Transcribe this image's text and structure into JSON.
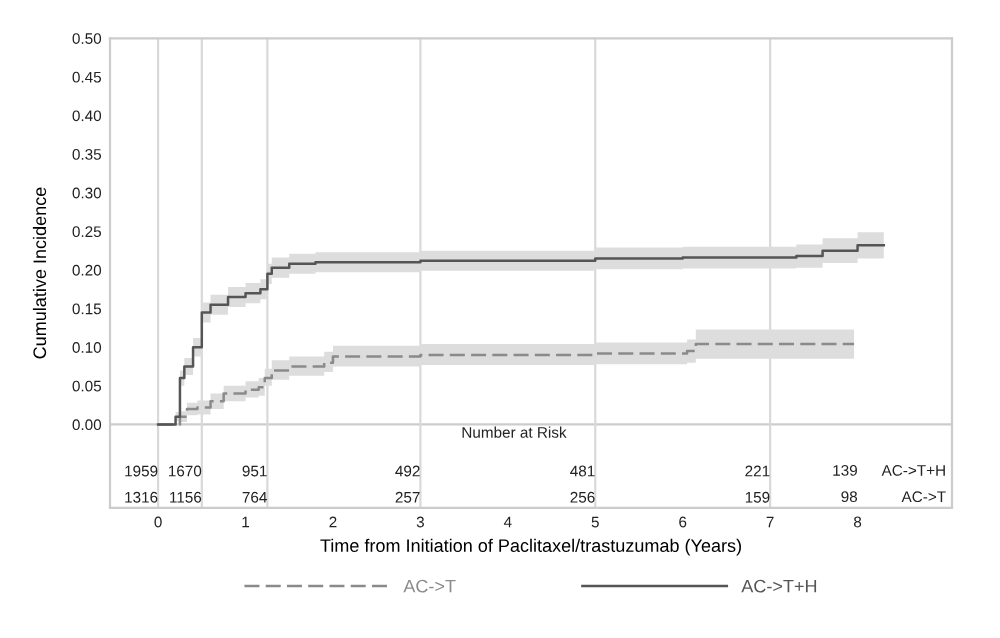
{
  "chart_data": {
    "type": "step",
    "xlabel": "Time from Initiation of Paclitaxel/trastuzumab (Years)",
    "ylabel": "Cumulative Incidence",
    "xlim": [
      -0.55,
      9.08
    ],
    "xticks": [
      0,
      1,
      2,
      3,
      4,
      5,
      6,
      7,
      8
    ],
    "ylim": [
      -0.108,
      0.5
    ],
    "yticks": [
      {
        "value": 0,
        "label": "0.00"
      },
      {
        "value": 0.05,
        "label": "0.05"
      },
      {
        "value": 0.1,
        "label": "0.10"
      },
      {
        "value": 0.15,
        "label": "0.15"
      },
      {
        "value": 0.2,
        "label": "0.20"
      },
      {
        "value": 0.25,
        "label": "0.25"
      },
      {
        "value": 0.3,
        "label": "0.30"
      },
      {
        "value": 0.35,
        "label": "0.35"
      },
      {
        "value": 0.4,
        "label": "0.40"
      },
      {
        "value": 0.45,
        "label": "0.45"
      },
      {
        "value": 0.5,
        "label": "0.50"
      }
    ],
    "grid": false,
    "legend": "bottom",
    "series": [
      {
        "name": "AC->T",
        "color": "#8a8a8a",
        "line_style": "dashed",
        "x": [
          0,
          0.15,
          0.25,
          0.33,
          0.45,
          0.6,
          0.75,
          1.0,
          1.15,
          1.22,
          1.3,
          1.5,
          1.9,
          2.0,
          3.0,
          5.0,
          6.05,
          6.15,
          7.96
        ],
        "values": [
          0,
          0,
          0.01,
          0.02,
          0.022,
          0.03,
          0.04,
          0.045,
          0.048,
          0.06,
          0.07,
          0.075,
          0.08,
          0.088,
          0.09,
          0.092,
          0.095,
          0.104,
          0.104
        ],
        "lower": [
          0,
          0,
          0.003,
          0.012,
          0.013,
          0.02,
          0.03,
          0.035,
          0.037,
          0.05,
          0.058,
          0.063,
          0.068,
          0.075,
          0.077,
          0.078,
          0.08,
          0.085,
          0.083
        ],
        "upper": [
          0,
          0,
          0.017,
          0.028,
          0.031,
          0.04,
          0.05,
          0.056,
          0.06,
          0.072,
          0.083,
          0.088,
          0.094,
          0.102,
          0.104,
          0.106,
          0.11,
          0.123,
          0.127
        ]
      },
      {
        "name": "AC->T+H",
        "color": "#555555",
        "line_style": "solid",
        "x": [
          0,
          0.1,
          0.2,
          0.25,
          0.3,
          0.4,
          0.5,
          0.6,
          0.8,
          1.0,
          1.17,
          1.25,
          1.3,
          1.5,
          1.8,
          3.0,
          5.0,
          6.0,
          7.3,
          7.6,
          8.0,
          8.3
        ],
        "values": [
          0,
          0,
          0.01,
          0.06,
          0.075,
          0.1,
          0.145,
          0.155,
          0.165,
          0.17,
          0.175,
          0.195,
          0.203,
          0.208,
          0.21,
          0.212,
          0.215,
          0.216,
          0.218,
          0.225,
          0.232,
          0.232
        ],
        "lower": [
          0,
          0,
          0.004,
          0.05,
          0.064,
          0.088,
          0.132,
          0.142,
          0.152,
          0.157,
          0.162,
          0.182,
          0.19,
          0.195,
          0.197,
          0.199,
          0.201,
          0.202,
          0.203,
          0.209,
          0.215,
          0.214
        ],
        "upper": [
          0,
          0,
          0.016,
          0.07,
          0.086,
          0.112,
          0.158,
          0.168,
          0.178,
          0.183,
          0.188,
          0.208,
          0.216,
          0.221,
          0.223,
          0.225,
          0.229,
          0.23,
          0.233,
          0.241,
          0.249,
          0.25
        ]
      }
    ],
    "ref_lines": [
      {
        "axis": "y",
        "value": 0,
        "color": "#cccccc"
      },
      {
        "axis": "x",
        "value": 0,
        "color": "#d9d9d9"
      },
      {
        "axis": "x",
        "value": 0.5,
        "color": "#d9d9d9"
      },
      {
        "axis": "x",
        "value": 1.25,
        "color": "#d9d9d9"
      },
      {
        "axis": "x",
        "value": 3,
        "color": "#d9d9d9"
      },
      {
        "axis": "x",
        "value": 5,
        "color": "#d9d9d9"
      },
      {
        "axis": "x",
        "value": 7,
        "color": "#d9d9d9"
      }
    ],
    "annotations": [
      {
        "text": "Number at Risk",
        "x": 4.07,
        "y": -0.012
      },
      {
        "text": "1959",
        "x": 0,
        "y": -0.062
      },
      {
        "text": "1670",
        "x": 0.5,
        "y": -0.062
      },
      {
        "text": "951",
        "x": 1.25,
        "y": -0.062
      },
      {
        "text": "492",
        "x": 3,
        "y": -0.062
      },
      {
        "text": "481",
        "x": 5,
        "y": -0.062
      },
      {
        "text": "221",
        "x": 7,
        "y": -0.062
      },
      {
        "text": "1316",
        "x": 0,
        "y": -0.096
      },
      {
        "text": "1156",
        "x": 0.5,
        "y": -0.096
      },
      {
        "text": "764",
        "x": 1.25,
        "y": -0.096
      },
      {
        "text": "257",
        "x": 3,
        "y": -0.096
      },
      {
        "text": "256",
        "x": 5,
        "y": -0.096
      },
      {
        "text": "159",
        "x": 7,
        "y": -0.096
      },
      "139",
      "AC->T+H",
      "98",
      "AC->T"
    ]
  }
}
